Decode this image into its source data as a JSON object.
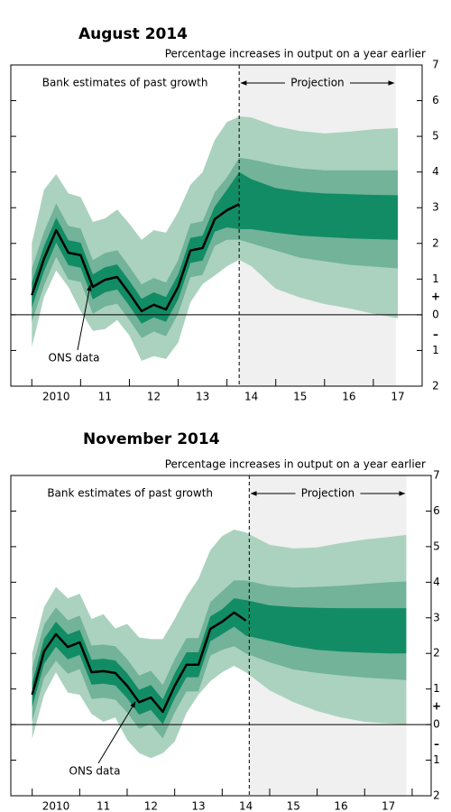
{
  "chart_data": [
    {
      "type": "fan",
      "title": "August 2014",
      "subtitle": "Percentage increases in output on a year earlier",
      "annotations": {
        "past": "Bank estimates of past growth",
        "projection": "Projection",
        "ons": "ONS data",
        "plus": "+",
        "minus": "–"
      },
      "projection_start": 2014.25,
      "projection_end": 2017.46,
      "xlim": [
        2009.57,
        2018
      ],
      "ylim": [
        -2,
        7
      ],
      "xticks": [
        {
          "value": 2010.5,
          "label": "2010"
        },
        {
          "value": 2011.5,
          "label": "11"
        },
        {
          "value": 2012.5,
          "label": "12"
        },
        {
          "value": 2013.5,
          "label": "13"
        },
        {
          "value": 2014.5,
          "label": "14"
        },
        {
          "value": 2015.5,
          "label": "15"
        },
        {
          "value": 2016.5,
          "label": "16"
        },
        {
          "value": 2017.5,
          "label": "17"
        }
      ],
      "xminorticks": [
        2010,
        2011,
        2012,
        2013,
        2014,
        2015,
        2016,
        2017,
        2018
      ],
      "yticks": [
        7,
        6,
        5,
        4,
        3,
        2,
        1,
        0,
        {
          "value": -1,
          "label": "1"
        },
        {
          "value": -2,
          "label": "2"
        }
      ],
      "projection_color": "#f0f0f0",
      "x": [
        2010,
        2010.25,
        2010.5,
        2010.75,
        2011,
        2011.25,
        2011.5,
        2011.75,
        2012,
        2012.25,
        2012.5,
        2012.75,
        2013,
        2013.25,
        2013.5,
        2013.75,
        2014,
        2014.25
      ],
      "series": [
        {
          "color": "#000000",
          "values": [
            0.55,
            1.57,
            2.37,
            1.74,
            1.67,
            0.78,
            0.98,
            1.06,
            0.6,
            0.1,
            0.28,
            0.15,
            0.78,
            1.8,
            1.87,
            2.68,
            2.93,
            3.1
          ]
        }
      ],
      "bands": {
        "x": [
          2010,
          2010.25,
          2010.5,
          2010.75,
          2011,
          2011.25,
          2011.5,
          2011.75,
          2012,
          2012.25,
          2012.5,
          2012.75,
          2013,
          2013.25,
          2013.5,
          2013.75,
          2014,
          2014.25,
          2014.5,
          2015,
          2015.5,
          2016,
          2016.5,
          2017,
          2017.5
        ],
        "outer": {
          "color": "#abd2bf",
          "upper": [
            2.0,
            3.5,
            3.94,
            3.4,
            3.3,
            2.6,
            2.7,
            2.95,
            2.55,
            2.1,
            2.37,
            2.3,
            2.88,
            3.64,
            4.0,
            4.9,
            5.4,
            5.56,
            5.53,
            5.28,
            5.15,
            5.08,
            5.13,
            5.2,
            5.23
          ],
          "lower": [
            -0.9,
            0.5,
            1.24,
            0.78,
            0.1,
            -0.45,
            -0.4,
            -0.15,
            -0.58,
            -1.29,
            -1.16,
            -1.24,
            -0.78,
            0.35,
            0.86,
            1.1,
            1.36,
            1.54,
            1.36,
            0.73,
            0.48,
            0.3,
            0.18,
            0.03,
            -0.1
          ]
        },
        "middle": {
          "color": "#72b39a",
          "upper": [
            1.3,
            2.32,
            3.12,
            2.49,
            2.42,
            1.53,
            1.73,
            1.81,
            1.35,
            0.85,
            1.03,
            0.9,
            1.53,
            2.55,
            2.62,
            3.43,
            3.85,
            4.4,
            4.35,
            4.2,
            4.1,
            4.05,
            4.05,
            4.05,
            4.05
          ],
          "lower": [
            -0.2,
            0.82,
            1.62,
            0.99,
            0.92,
            0.03,
            0.23,
            0.31,
            -0.15,
            -0.65,
            -0.47,
            -0.6,
            0.03,
            1.05,
            1.12,
            1.93,
            2.1,
            2.1,
            2.0,
            1.8,
            1.6,
            1.5,
            1.4,
            1.35,
            1.3
          ]
        },
        "inner": {
          "color": "#128c64",
          "upper": [
            0.9,
            1.92,
            2.72,
            2.09,
            2.02,
            1.13,
            1.33,
            1.41,
            0.95,
            0.45,
            0.63,
            0.5,
            1.13,
            2.15,
            2.22,
            3.03,
            3.5,
            4.0,
            3.8,
            3.55,
            3.45,
            3.4,
            3.38,
            3.36,
            3.35
          ],
          "lower": [
            0.2,
            1.22,
            2.02,
            1.39,
            1.32,
            0.43,
            0.63,
            0.71,
            0.25,
            -0.25,
            -0.07,
            -0.2,
            0.43,
            1.45,
            1.52,
            2.33,
            2.45,
            2.4,
            2.4,
            2.3,
            2.22,
            2.18,
            2.14,
            2.12,
            2.1
          ]
        }
      }
    },
    {
      "type": "fan",
      "title": "November 2014",
      "subtitle": "Percentage increases in output on a year earlier",
      "annotations": {
        "past": "Bank estimates of past growth",
        "projection": "Projection",
        "ons": "ONS data",
        "plus": "+",
        "minus": "–"
      },
      "projection_start": 2014.57,
      "projection_end": 2017.88,
      "xlim": [
        2009.55,
        2018.4
      ],
      "ylim": [
        -2,
        7
      ],
      "xticks": [
        {
          "value": 2010.5,
          "label": "2010"
        },
        {
          "value": 2011.5,
          "label": "11"
        },
        {
          "value": 2012.5,
          "label": "12"
        },
        {
          "value": 2013.5,
          "label": "13"
        },
        {
          "value": 2014.5,
          "label": "14"
        },
        {
          "value": 2015.5,
          "label": "15"
        },
        {
          "value": 2016.5,
          "label": "16"
        },
        {
          "value": 2017.5,
          "label": "17"
        }
      ],
      "xminorticks": [
        2010,
        2011,
        2012,
        2013,
        2014,
        2015,
        2016,
        2017,
        2018
      ],
      "yticks": [
        7,
        6,
        5,
        4,
        3,
        2,
        1,
        0,
        {
          "value": -1,
          "label": "1"
        },
        {
          "value": -2,
          "label": "2"
        }
      ],
      "projection_color": "#f0f0f0",
      "x": [
        2010,
        2010.25,
        2010.5,
        2010.75,
        2011,
        2011.25,
        2011.5,
        2011.75,
        2012,
        2012.25,
        2012.5,
        2012.75,
        2013,
        2013.25,
        2013.5,
        2013.75,
        2014,
        2014.25,
        2014.5
      ],
      "series": [
        {
          "color": "#000000",
          "values": [
            0.84,
            2.06,
            2.54,
            2.18,
            2.31,
            1.47,
            1.5,
            1.45,
            1.09,
            0.63,
            0.76,
            0.36,
            1.09,
            1.68,
            1.68,
            2.69,
            2.89,
            3.15,
            2.92
          ]
        }
      ],
      "bands": {
        "x": [
          2010,
          2010.25,
          2010.5,
          2010.75,
          2011,
          2011.25,
          2011.5,
          2011.75,
          2012,
          2012.25,
          2012.5,
          2012.75,
          2013,
          2013.25,
          2013.5,
          2013.75,
          2014,
          2014.25,
          2014.5,
          2015,
          2015.5,
          2016,
          2016.5,
          2017,
          2017.5,
          2017.875
        ],
        "outer": {
          "color": "#abd2bf",
          "upper": [
            2.0,
            3.3,
            3.87,
            3.55,
            3.68,
            2.97,
            3.1,
            2.7,
            2.83,
            2.45,
            2.4,
            2.4,
            2.97,
            3.6,
            4.1,
            4.9,
            5.3,
            5.48,
            5.4,
            5.05,
            4.95,
            4.98,
            5.1,
            5.2,
            5.27,
            5.33
          ],
          "lower": [
            -0.4,
            0.84,
            1.47,
            0.9,
            0.84,
            0.3,
            0.08,
            0.2,
            -0.43,
            -0.8,
            -0.94,
            -0.8,
            -0.48,
            0.33,
            0.84,
            1.22,
            1.47,
            1.65,
            1.47,
            0.96,
            0.63,
            0.38,
            0.2,
            0.08,
            0.03,
            0.0
          ]
        },
        "middle": {
          "color": "#72b39a",
          "upper": [
            1.59,
            2.81,
            3.29,
            2.93,
            3.06,
            2.22,
            2.25,
            2.2,
            1.84,
            1.38,
            1.51,
            1.11,
            1.84,
            2.43,
            2.43,
            3.44,
            3.75,
            4.05,
            4.05,
            3.9,
            3.85,
            3.87,
            3.9,
            3.95,
            4.0,
            4.02
          ],
          "lower": [
            0.09,
            1.31,
            1.79,
            1.43,
            1.56,
            0.72,
            0.75,
            0.7,
            0.34,
            -0.12,
            0.01,
            -0.39,
            0.34,
            0.93,
            0.93,
            1.94,
            2.1,
            2.2,
            2.0,
            1.75,
            1.55,
            1.45,
            1.38,
            1.32,
            1.28,
            1.25
          ]
        },
        "inner": {
          "color": "#128c64",
          "upper": [
            1.19,
            2.41,
            2.89,
            2.53,
            2.66,
            1.82,
            1.85,
            1.8,
            1.44,
            0.98,
            1.11,
            0.71,
            1.44,
            2.03,
            2.03,
            3.04,
            3.24,
            3.55,
            3.5,
            3.35,
            3.3,
            3.28,
            3.27,
            3.27,
            3.27,
            3.27
          ],
          "lower": [
            0.49,
            1.71,
            2.19,
            1.83,
            1.96,
            1.12,
            1.15,
            1.1,
            0.74,
            0.28,
            0.41,
            0.01,
            0.74,
            1.33,
            1.33,
            2.34,
            2.54,
            2.75,
            2.5,
            2.35,
            2.2,
            2.1,
            2.05,
            2.02,
            2.0,
            2.0
          ]
        }
      }
    }
  ]
}
